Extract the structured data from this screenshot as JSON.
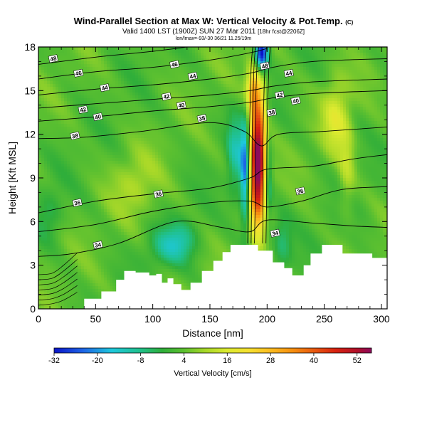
{
  "title": "Wind-Parallel Section at Max W: Vertical Velocity & Pot.Temp.",
  "title_mark": "(C)",
  "subtitle": "Valid 1400 LST (1900Z) SUN 27 Mar 2011",
  "subtitle_note": "[18hr fcst@2206Z]",
  "subtitle2": "lon/lmax=-93/-30 36/21 11.25/19m",
  "colors": {
    "background": "#ffffff",
    "terrain": "#ffffff",
    "contour": "#000000"
  },
  "chart_data": {
    "type": "heatmap",
    "xlabel": "Distance [nm]",
    "ylabel": "Height [Kft MSL]",
    "xlim": [
      0,
      305
    ],
    "ylim": [
      0,
      18
    ],
    "x_ticks": [
      "0",
      "50",
      "100",
      "150",
      "200",
      "250",
      "300"
    ],
    "x_tick_values": [
      0,
      50,
      100,
      150,
      200,
      250,
      300
    ],
    "y_ticks": [
      "0",
      "3",
      "6",
      "9",
      "12",
      "15",
      "18"
    ],
    "y_tick_values": [
      0,
      3,
      6,
      9,
      12,
      15,
      18
    ],
    "colorbar": {
      "label": "Vertical Velocity [cm/s]",
      "min": -32,
      "max": 56,
      "tick_labels": [
        "-32",
        "-20",
        "-8",
        "4",
        "16",
        "28",
        "40",
        "52"
      ],
      "tick_values": [
        -32,
        -20,
        -8,
        4,
        16,
        28,
        40,
        52
      ],
      "stops": [
        {
          "v": -32,
          "color": "#0a14c8"
        },
        {
          "v": -24,
          "color": "#1e64e6"
        },
        {
          "v": -16,
          "color": "#1ec8dc"
        },
        {
          "v": -8,
          "color": "#20c08a"
        },
        {
          "v": -2,
          "color": "#2fae3a"
        },
        {
          "v": 4,
          "color": "#5cc030"
        },
        {
          "v": 10,
          "color": "#a8d828"
        },
        {
          "v": 16,
          "color": "#dcea30"
        },
        {
          "v": 22,
          "color": "#f5e030"
        },
        {
          "v": 28,
          "color": "#fbbc20"
        },
        {
          "v": 34,
          "color": "#f69010"
        },
        {
          "v": 40,
          "color": "#e85a10"
        },
        {
          "v": 46,
          "color": "#d82210"
        },
        {
          "v": 52,
          "color": "#b0102a"
        },
        {
          "v": 56,
          "color": "#8c0a5c"
        }
      ]
    },
    "background_velocity": 3,
    "velocity_features": [
      {
        "name": "updraft-core",
        "x": 192,
        "y": 9.5,
        "sx": 5,
        "sy": 2.6,
        "amp": 46
      },
      {
        "name": "updraft-column",
        "x": 191,
        "y": 12.5,
        "sx": 6,
        "sy": 3.5,
        "amp": 20
      },
      {
        "name": "upper-updraft",
        "x": 188,
        "y": 15.2,
        "sx": 5,
        "sy": 1.0,
        "amp": 14
      },
      {
        "name": "downdraft-left",
        "x": 181,
        "y": 9.5,
        "sx": 3,
        "sy": 2.6,
        "amp": -28
      },
      {
        "name": "downdraft-right",
        "x": 201,
        "y": 9.2,
        "sx": 2.5,
        "sy": 2.2,
        "amp": -16
      },
      {
        "name": "top-downdraft",
        "x": 195,
        "y": 17.6,
        "sx": 4,
        "sy": 0.9,
        "amp": -40
      },
      {
        "name": "left-low-dip",
        "x": 172,
        "y": 10.5,
        "sx": 5,
        "sy": 2.0,
        "amp": -12
      },
      {
        "name": "mid-low-dip",
        "x": 112,
        "y": 4.2,
        "sx": 12,
        "sy": 0.9,
        "amp": -10
      },
      {
        "name": "mid-low-dip-2",
        "x": 127,
        "y": 4.8,
        "sx": 10,
        "sy": 1.0,
        "amp": -8
      },
      {
        "name": "right-high-band",
        "x": 260,
        "y": 13.2,
        "sx": 8,
        "sy": 1.8,
        "amp": 12
      },
      {
        "name": "right-high-band-2",
        "x": 270,
        "y": 9.5,
        "sx": 5,
        "sy": 2.2,
        "amp": 8
      },
      {
        "name": "left-yellow-band",
        "x": 85,
        "y": 8.5,
        "sx": 14,
        "sy": 1.5,
        "amp": 7
      },
      {
        "name": "right-low-dip",
        "x": 213,
        "y": 4.5,
        "sx": 6,
        "sy": 1.3,
        "amp": -9
      },
      {
        "name": "far-left-dip",
        "x": 10,
        "y": 6.5,
        "sx": 8,
        "sy": 1.2,
        "amp": -6
      }
    ],
    "terrain_profile": [
      {
        "x": 0,
        "h": 0
      },
      {
        "x": 30,
        "h": 0
      },
      {
        "x": 40,
        "h": 0.7
      },
      {
        "x": 55,
        "h": 1.2
      },
      {
        "x": 68,
        "h": 2.0
      },
      {
        "x": 75,
        "h": 2.6
      },
      {
        "x": 85,
        "h": 2.5
      },
      {
        "x": 97,
        "h": 2.3
      },
      {
        "x": 103,
        "h": 2.4
      },
      {
        "x": 108,
        "h": 1.8
      },
      {
        "x": 113,
        "h": 2.1
      },
      {
        "x": 118,
        "h": 1.7
      },
      {
        "x": 125,
        "h": 1.3
      },
      {
        "x": 133,
        "h": 1.8
      },
      {
        "x": 143,
        "h": 2.6
      },
      {
        "x": 153,
        "h": 3.3
      },
      {
        "x": 161,
        "h": 3.9
      },
      {
        "x": 168,
        "h": 4.4
      },
      {
        "x": 184,
        "h": 4.4
      },
      {
        "x": 192,
        "h": 4.0
      },
      {
        "x": 205,
        "h": 3.2
      },
      {
        "x": 215,
        "h": 2.8
      },
      {
        "x": 222,
        "h": 2.3
      },
      {
        "x": 232,
        "h": 3.0
      },
      {
        "x": 238,
        "h": 3.8
      },
      {
        "x": 248,
        "h": 4.4
      },
      {
        "x": 258,
        "h": 4.4
      },
      {
        "x": 266,
        "h": 3.8
      },
      {
        "x": 282,
        "h": 3.8
      },
      {
        "x": 292,
        "h": 3.5
      },
      {
        "x": 305,
        "h": 3.5
      }
    ],
    "theta_contours": [
      {
        "value": 34,
        "points": [
          [
            0,
            3.6
          ],
          [
            30,
            3.8
          ],
          [
            70,
            4.5
          ],
          [
            120,
            6.0
          ],
          [
            160,
            5.6
          ],
          [
            185,
            5.3
          ],
          [
            200,
            6.1
          ],
          [
            240,
            5.9
          ],
          [
            275,
            5.7
          ],
          [
            305,
            5.6
          ]
        ]
      },
      {
        "value": 35,
        "points": [
          [
            0,
            5.3
          ],
          [
            50,
            5.8
          ],
          [
            100,
            6.7
          ],
          [
            150,
            7.3
          ],
          [
            185,
            7.4
          ],
          [
            200,
            7.0
          ],
          [
            230,
            7.4
          ],
          [
            265,
            8.2
          ],
          [
            305,
            8.4
          ]
        ]
      },
      {
        "value": 36,
        "points": [
          [
            0,
            6.6
          ],
          [
            50,
            7.4
          ],
          [
            100,
            7.9
          ],
          [
            150,
            8.3
          ],
          [
            185,
            9.0
          ],
          [
            200,
            9.6
          ],
          [
            240,
            9.8
          ],
          [
            275,
            10.3
          ],
          [
            305,
            10.6
          ]
        ]
      },
      {
        "value": 38,
        "points": [
          [
            0,
            11.7
          ],
          [
            40,
            11.8
          ],
          [
            90,
            12.2
          ],
          [
            150,
            12.8
          ],
          [
            180,
            12.2
          ],
          [
            195,
            11.2
          ],
          [
            210,
            12.0
          ],
          [
            250,
            12.2
          ],
          [
            305,
            12.5
          ]
        ]
      },
      {
        "value": 40,
        "points": [
          [
            0,
            12.9
          ],
          [
            50,
            13.2
          ],
          [
            100,
            13.6
          ],
          [
            150,
            13.9
          ],
          [
            185,
            14.2
          ],
          [
            205,
            14.5
          ],
          [
            240,
            14.8
          ],
          [
            305,
            15.0
          ]
        ]
      },
      {
        "value": 42,
        "points": [
          [
            0,
            13.8
          ],
          [
            50,
            14.1
          ],
          [
            100,
            14.4
          ],
          [
            150,
            14.7
          ],
          [
            185,
            15.0
          ],
          [
            205,
            15.3
          ],
          [
            240,
            15.6
          ],
          [
            305,
            15.8
          ]
        ]
      },
      {
        "value": 44,
        "points": [
          [
            0,
            14.7
          ],
          [
            50,
            15.1
          ],
          [
            100,
            15.4
          ],
          [
            150,
            15.8
          ],
          [
            185,
            16.2
          ],
          [
            205,
            16.6
          ],
          [
            240,
            17.0
          ],
          [
            305,
            17.2
          ]
        ]
      },
      {
        "value": 46,
        "points": [
          [
            0,
            15.8
          ],
          [
            50,
            16.3
          ],
          [
            100,
            16.6
          ],
          [
            150,
            17.1
          ],
          [
            185,
            17.6
          ],
          [
            200,
            17.9
          ]
        ]
      },
      {
        "value": 48,
        "points": [
          [
            0,
            16.8
          ],
          [
            50,
            17.3
          ],
          [
            100,
            17.7
          ],
          [
            130,
            18.0
          ]
        ]
      }
    ],
    "contour_labels": [
      {
        "text": "48",
        "x": 13,
        "y": 17.2
      },
      {
        "text": "46",
        "x": 35,
        "y": 16.2
      },
      {
        "text": "44",
        "x": 58,
        "y": 15.2
      },
      {
        "text": "42",
        "x": 39,
        "y": 13.7
      },
      {
        "text": "40",
        "x": 52,
        "y": 13.2
      },
      {
        "text": "38",
        "x": 32,
        "y": 11.9
      },
      {
        "text": "36",
        "x": 34,
        "y": 7.3
      },
      {
        "text": "34",
        "x": 52,
        "y": 4.4
      },
      {
        "text": "46",
        "x": 119,
        "y": 16.8
      },
      {
        "text": "44",
        "x": 135,
        "y": 16.0
      },
      {
        "text": "42",
        "x": 112,
        "y": 14.6
      },
      {
        "text": "40",
        "x": 125,
        "y": 14.0
      },
      {
        "text": "38",
        "x": 143,
        "y": 13.1
      },
      {
        "text": "36",
        "x": 105,
        "y": 7.9
      },
      {
        "text": "48",
        "x": 198,
        "y": 16.7
      },
      {
        "text": "44",
        "x": 219,
        "y": 16.2
      },
      {
        "text": "42",
        "x": 211,
        "y": 14.7
      },
      {
        "text": "40",
        "x": 225,
        "y": 14.3
      },
      {
        "text": "38",
        "x": 204,
        "y": 13.5
      },
      {
        "text": "36",
        "x": 229,
        "y": 8.1
      },
      {
        "text": "34",
        "x": 207,
        "y": 5.2
      }
    ]
  }
}
